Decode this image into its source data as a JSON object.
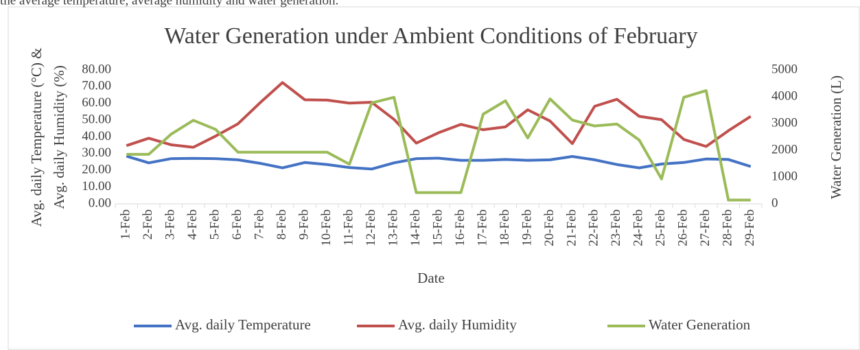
{
  "caption": "the average temperature, average humidity and water generation.",
  "chart_data": {
    "type": "line",
    "title": "Water Generation under Ambient Conditions of February",
    "xlabel": "Date",
    "ylabel": [
      "Avg. daily Temperature (°C) &",
      "Avg. daily Humidity (%)"
    ],
    "y2label": "Water Generation (L)",
    "categories": [
      "1-Feb",
      "2-Feb",
      "3-Feb",
      "4-Feb",
      "5-Feb",
      "6-Feb",
      "7-Feb",
      "8-Feb",
      "9-Feb",
      "10-Feb",
      "11-Feb",
      "12-Feb",
      "13-Feb",
      "14-Feb",
      "15-Feb",
      "16-Feb",
      "17-Feb",
      "18-Feb",
      "19-Feb",
      "20-Feb",
      "21-Feb",
      "22-Feb",
      "23-Feb",
      "24-Feb",
      "25-Feb",
      "26-Feb",
      "27-Feb",
      "28-Feb",
      "29-Feb"
    ],
    "series": [
      {
        "name": "Avg. daily Temperature",
        "color": "#4472c4",
        "axis": "y",
        "values": [
          28.5,
          24.5,
          27,
          27.2,
          27,
          26.3,
          24.2,
          21.5,
          24.7,
          23.5,
          21.7,
          20.8,
          24.5,
          27,
          27.3,
          26,
          26,
          26.5,
          26,
          26.3,
          28.3,
          26.3,
          23.5,
          21.5,
          23.8,
          24.7,
          26.8,
          26.5,
          22.3
        ]
      },
      {
        "name": "Avg. daily Humidity",
        "color": "#c0504d",
        "axis": "y",
        "values": [
          34.8,
          39.2,
          35.3,
          33.8,
          40.5,
          47.8,
          60.5,
          72.5,
          62.2,
          62,
          60.2,
          60.7,
          50.5,
          36.3,
          42.5,
          47.5,
          44.3,
          46,
          56.2,
          49.5,
          36,
          58.3,
          62.5,
          52.3,
          50.3,
          38.5,
          34.3,
          43.7,
          52.3
        ]
      },
      {
        "name": "Water Generation",
        "color": "#9bbb59",
        "axis": "y2",
        "values": [
          1850,
          1850,
          2600,
          3120,
          2780,
          1930,
          1930,
          1930,
          1930,
          1930,
          1480,
          3770,
          3980,
          420,
          420,
          420,
          3350,
          3850,
          2460,
          3920,
          3130,
          2910,
          2980,
          2380,
          930,
          3980,
          4230,
          140,
          140
        ]
      }
    ],
    "ylim": [
      0,
      80
    ],
    "yticks": [
      {
        "value": 0,
        "label": "0.00"
      },
      {
        "value": 10,
        "label": "10.00"
      },
      {
        "value": 20,
        "label": "20.00"
      },
      {
        "value": 30,
        "label": "30.00"
      },
      {
        "value": 40,
        "label": "40.00"
      },
      {
        "value": 50,
        "label": "50.00"
      },
      {
        "value": 60,
        "label": "60.00"
      },
      {
        "value": 70,
        "label": "70.00"
      },
      {
        "value": 80,
        "label": "80.00"
      }
    ],
    "y2lim": [
      0,
      5000
    ],
    "y2ticks": [
      0,
      1000,
      2000,
      3000,
      4000,
      5000
    ],
    "legend": "bottom"
  }
}
